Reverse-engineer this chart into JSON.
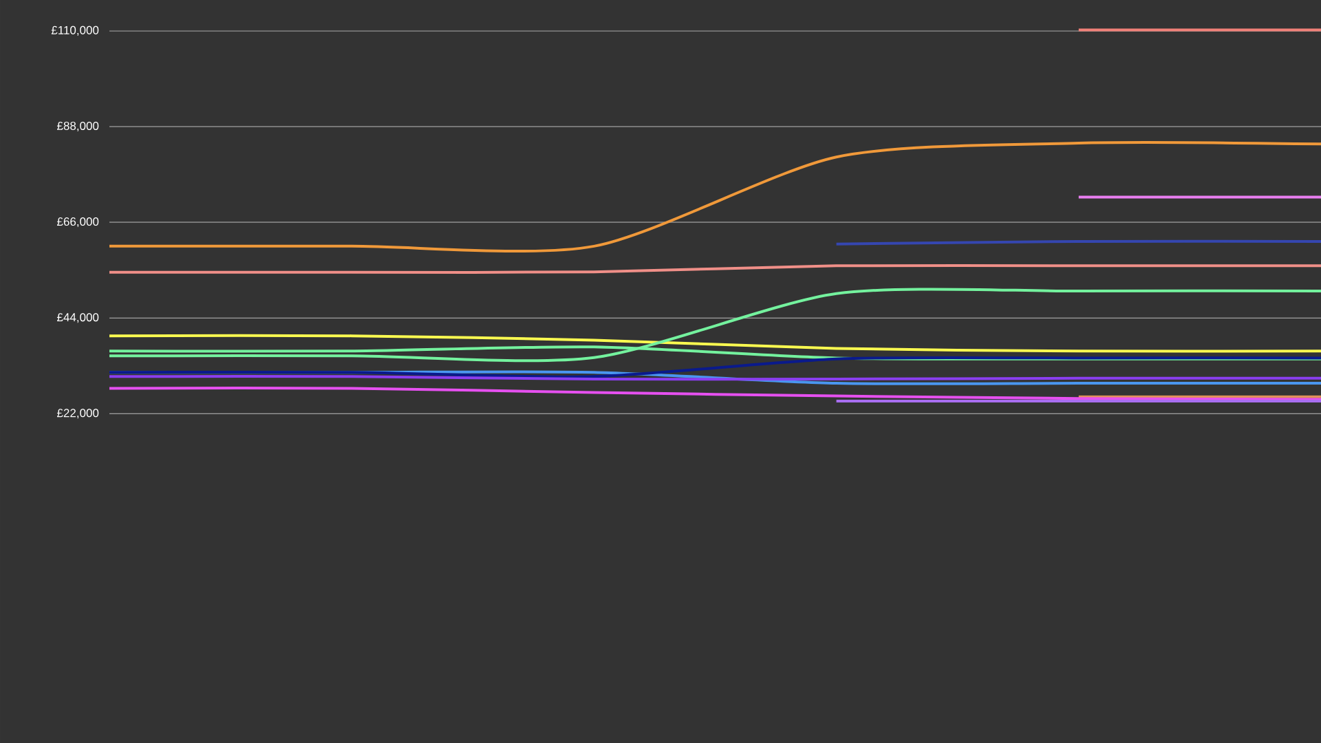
{
  "chart_data": {
    "type": "line",
    "categories": [
      null,
      null,
      null,
      null,
      null,
      null
    ],
    "ylim": [
      -53700,
      117100
    ],
    "yticks": [
      {
        "value": 22000,
        "label": "£22,000"
      },
      {
        "value": 44000,
        "label": "£44,000"
      },
      {
        "value": 66000,
        "label": "£66,000"
      },
      {
        "value": 88000,
        "label": "£88,000"
      },
      {
        "value": 110000,
        "label": "£110,000"
      }
    ],
    "grid": "y",
    "marker": "none",
    "line_style": "solid",
    "tick_labels": "y",
    "series": [
      {
        "color": "#f0993a",
        "values": [
          60500,
          60500,
          60500,
          81000,
          84200,
          84000
        ]
      },
      {
        "color": "#f08f88",
        "values": [
          54500,
          54500,
          54600,
          56000,
          56000,
          56000
        ]
      },
      {
        "color": "#fafa50",
        "values": [
          39900,
          39900,
          38900,
          37000,
          36400,
          36400
        ]
      },
      {
        "color": "#74f29e",
        "values": [
          35300,
          35300,
          34900,
          49600,
          50200,
          50200
        ]
      },
      {
        "color": "#74f29e",
        "values": [
          36400,
          36400,
          37350,
          34800,
          34600,
          34600
        ]
      },
      {
        "color": "#4a96f0",
        "values": [
          31500,
          31500,
          31500,
          29000,
          29000,
          29000
        ]
      },
      {
        "color": "#0a1a8c",
        "values": [
          31500,
          31500,
          30550,
          34600,
          34800,
          34800
        ]
      },
      {
        "color": "#8a3ef0",
        "values": [
          30550,
          30550,
          29950,
          29950,
          30150,
          30150
        ]
      },
      {
        "color": "#e0905a",
        "values": [
          null,
          null,
          null,
          null,
          25900,
          25900
        ]
      },
      {
        "color": "#e650f0",
        "values": [
          27830,
          27830,
          26860,
          26080,
          25500,
          25300
        ]
      },
      {
        "color": "#a86ef0",
        "values": [
          null,
          null,
          null,
          24900,
          24900,
          24900
        ]
      },
      {
        "color": "#3546b0",
        "values": [
          null,
          null,
          null,
          61000,
          61600,
          61600
        ]
      },
      {
        "color": "#f08078",
        "values": [
          null,
          null,
          null,
          null,
          110200,
          110200
        ]
      },
      {
        "color": "#e87ef0",
        "values": [
          null,
          null,
          null,
          null,
          71800,
          71800
        ]
      }
    ]
  }
}
